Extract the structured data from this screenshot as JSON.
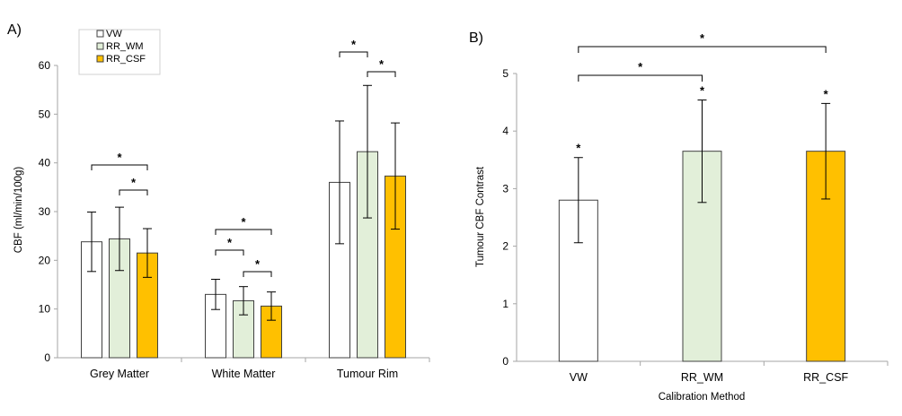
{
  "chart_data": [
    {
      "type": "bar",
      "panel_label": "A)",
      "ylabel": "CBF (ml/min/100g)",
      "xlabel": "",
      "ylim": [
        0,
        60
      ],
      "yticks": [
        0,
        10,
        20,
        30,
        40,
        50,
        60
      ],
      "categories": [
        "Grey Matter",
        "White Matter",
        "Tumour Rim"
      ],
      "series": [
        {
          "name": "VW",
          "color": "#ffffff",
          "values": [
            23.8,
            13.0,
            36.0
          ],
          "errors": [
            6.1,
            3.1,
            12.6
          ]
        },
        {
          "name": "RR_WM",
          "color": "#e2efd9",
          "values": [
            24.4,
            11.7,
            42.3
          ],
          "errors": [
            6.5,
            2.9,
            13.6
          ]
        },
        {
          "name": "RR_CSF",
          "color": "#ffc000",
          "values": [
            21.5,
            10.6,
            37.3
          ],
          "errors": [
            5.0,
            2.9,
            10.9
          ]
        }
      ],
      "legend": {
        "entries": [
          "VW",
          "RR_WM",
          "RR_CSF"
        ],
        "placement": "top-left"
      },
      "grid": false,
      "significance": [
        {
          "category": 0,
          "from": 0,
          "to": 2,
          "label": "*"
        },
        {
          "category": 0,
          "from": 1,
          "to": 2,
          "label": "*"
        },
        {
          "category": 1,
          "from": 0,
          "to": 2,
          "label": "*"
        },
        {
          "category": 1,
          "from": 0,
          "to": 1,
          "label": "*"
        },
        {
          "category": 1,
          "from": 1,
          "to": 2,
          "label": "*"
        },
        {
          "category": 2,
          "from": 0,
          "to": 1,
          "label": "*"
        },
        {
          "category": 2,
          "from": 1,
          "to": 2,
          "label": "*"
        }
      ]
    },
    {
      "type": "bar",
      "panel_label": "B)",
      "ylabel": "Tumour CBF Contrast",
      "xlabel": "Calibration Method",
      "ylim": [
        0,
        5
      ],
      "yticks": [
        0,
        1,
        2,
        3,
        4,
        5
      ],
      "categories": [
        "VW",
        "RR_WM",
        "RR_CSF"
      ],
      "colors": [
        "#ffffff",
        "#e2efd9",
        "#ffc000"
      ],
      "values": [
        2.8,
        3.65,
        3.65
      ],
      "errors": [
        0.74,
        0.89,
        0.83
      ],
      "bar_labels": [
        "*",
        "*",
        "*"
      ],
      "grid": false,
      "significance": [
        {
          "from": 0,
          "to": 1,
          "label": "*"
        },
        {
          "from": 0,
          "to": 2,
          "label": "*"
        }
      ]
    }
  ]
}
